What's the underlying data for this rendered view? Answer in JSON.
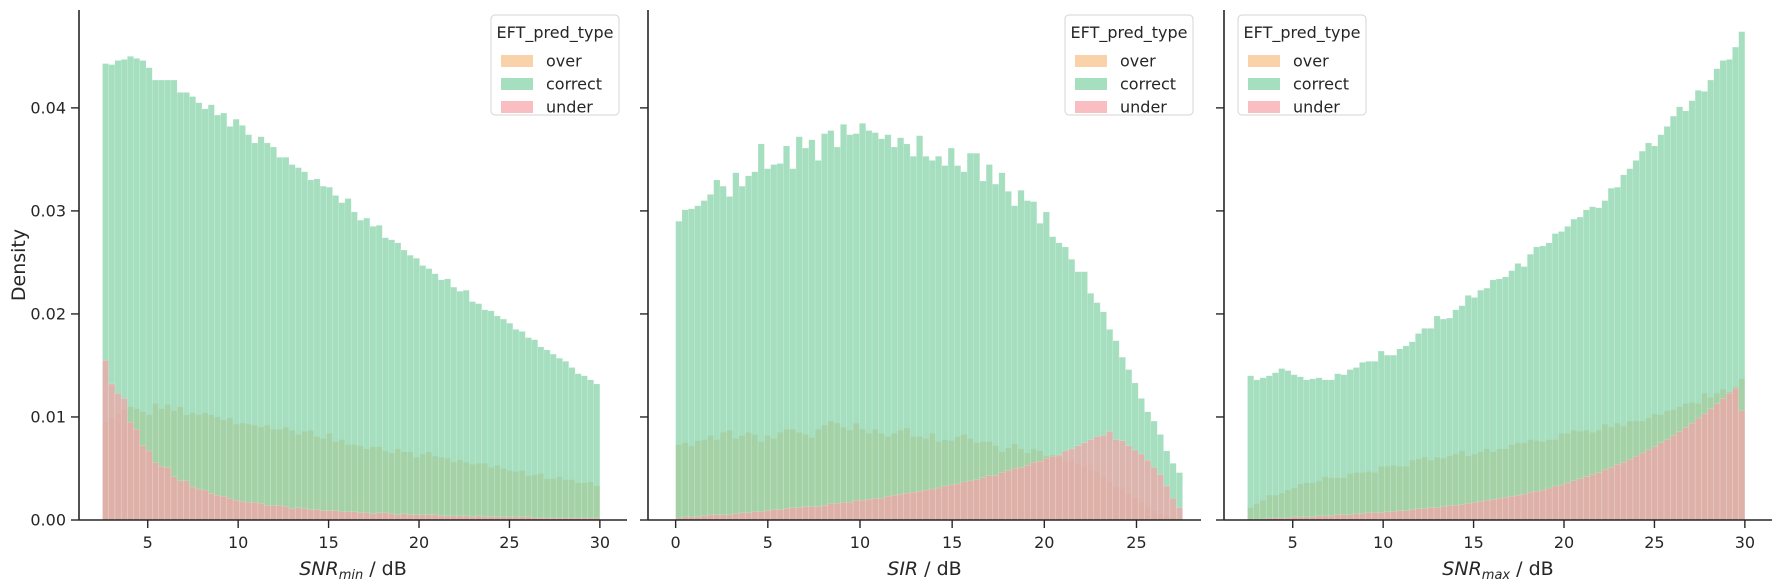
{
  "chart_data": [
    {
      "type": "bar",
      "title": "",
      "xlabel_main": "SNR",
      "xlabel_sub": "min",
      "xlabel_rest": " / dB",
      "ylabel": "Density",
      "xlim": [
        1.2,
        31.5
      ],
      "ylim": [
        0,
        0.0495
      ],
      "xticks": [
        5,
        10,
        15,
        20,
        25,
        30
      ],
      "yticks": [
        0.0,
        0.01,
        0.02,
        0.03,
        0.04
      ],
      "ytick_labels": [
        "0.00",
        "0.01",
        "0.02",
        "0.03",
        "0.04"
      ],
      "show_yticklabels": true,
      "legend": {
        "title": "EFT_pred_type",
        "entries": [
          "over",
          "correct",
          "under"
        ],
        "placement": "top-right"
      },
      "bins": {
        "start": 2.5,
        "end": 30,
        "count": 80
      },
      "series": [
        {
          "name": "over",
          "color": "#f8bf86",
          "values": [
            0.0095,
            0.0099,
            0.0103,
            0.0107,
            0.011,
            0.0108,
            0.0105,
            0.0102,
            0.0113,
            0.0108,
            0.0112,
            0.0106,
            0.011,
            0.0102,
            0.0104,
            0.0102,
            0.0104,
            0.0102,
            0.01,
            0.0097,
            0.0099,
            0.0093,
            0.0094,
            0.0093,
            0.0092,
            0.009,
            0.0092,
            0.0088,
            0.0088,
            0.009,
            0.0087,
            0.0083,
            0.0086,
            0.0087,
            0.0081,
            0.0079,
            0.0084,
            0.0076,
            0.0078,
            0.0073,
            0.0073,
            0.0072,
            0.0069,
            0.0071,
            0.0071,
            0.0067,
            0.0065,
            0.0069,
            0.0066,
            0.0066,
            0.0061,
            0.0064,
            0.0066,
            0.0062,
            0.0061,
            0.006,
            0.0056,
            0.0058,
            0.0056,
            0.0054,
            0.0055,
            0.0055,
            0.0051,
            0.0053,
            0.005,
            0.0048,
            0.0047,
            0.0048,
            0.0043,
            0.0044,
            0.0045,
            0.004,
            0.004,
            0.0042,
            0.0039,
            0.0039,
            0.0036,
            0.0036,
            0.0037,
            0.0033
          ]
        },
        {
          "name": "correct",
          "color": "#7fd1a4",
          "values": [
            0.0443,
            0.0442,
            0.0446,
            0.0447,
            0.045,
            0.0448,
            0.0446,
            0.0439,
            0.0427,
            0.0427,
            0.0427,
            0.0427,
            0.0415,
            0.0415,
            0.0411,
            0.0405,
            0.0399,
            0.0403,
            0.0393,
            0.0395,
            0.0382,
            0.0389,
            0.0383,
            0.0374,
            0.0366,
            0.0372,
            0.0366,
            0.0362,
            0.0352,
            0.0352,
            0.0345,
            0.0342,
            0.0338,
            0.033,
            0.0331,
            0.0324,
            0.0323,
            0.0315,
            0.0308,
            0.0312,
            0.0299,
            0.0291,
            0.0293,
            0.0285,
            0.0286,
            0.0274,
            0.0272,
            0.0269,
            0.0262,
            0.0257,
            0.0254,
            0.0247,
            0.0244,
            0.0239,
            0.0233,
            0.0234,
            0.0226,
            0.0222,
            0.0223,
            0.0212,
            0.021,
            0.0204,
            0.0203,
            0.0198,
            0.0195,
            0.0191,
            0.0185,
            0.0183,
            0.0177,
            0.0175,
            0.0168,
            0.0165,
            0.0161,
            0.0157,
            0.0154,
            0.0148,
            0.0142,
            0.014,
            0.0136,
            0.0132
          ]
        },
        {
          "name": "under",
          "color": "#f5a3a8",
          "values": [
            0.0155,
            0.0132,
            0.0123,
            0.0118,
            0.0095,
            0.0088,
            0.0072,
            0.0067,
            0.0056,
            0.0052,
            0.0051,
            0.0042,
            0.0038,
            0.0038,
            0.0032,
            0.003,
            0.0029,
            0.0026,
            0.0024,
            0.0023,
            0.0021,
            0.0019,
            0.0018,
            0.0017,
            0.0017,
            0.0016,
            0.0014,
            0.0014,
            0.0014,
            0.0013,
            0.0011,
            0.0012,
            0.0011,
            0.001,
            0.001,
            0.0009,
            0.0009,
            0.0009,
            0.0008,
            0.0008,
            0.0008,
            0.0007,
            0.0007,
            0.0006,
            0.0007,
            0.0007,
            0.0006,
            0.0005,
            0.0006,
            0.0005,
            0.0005,
            0.0005,
            0.0005,
            0.0005,
            0.0004,
            0.0004,
            0.0004,
            0.0004,
            0.0004,
            0.0003,
            0.0004,
            0.0003,
            0.0003,
            0.0003,
            0.0003,
            0.0003,
            0.0003,
            0.0003,
            0.0003,
            0.0002,
            0.0002,
            0.0002,
            0.0002,
            0.0002,
            0.0002,
            0.0002,
            0.0002,
            0.0002,
            0.0002,
            0.0002
          ]
        }
      ]
    },
    {
      "type": "bar",
      "title": "",
      "xlabel_main": "SIR",
      "xlabel_sub": "",
      "xlabel_rest": " / dB",
      "ylabel": "",
      "xlim": [
        -1.5,
        28.5
      ],
      "ylim": [
        0,
        0.0495
      ],
      "xticks": [
        0,
        5,
        10,
        15,
        20,
        25
      ],
      "yticks": [
        0.0,
        0.01,
        0.02,
        0.03,
        0.04
      ],
      "ytick_labels": [
        "",
        "",
        "",
        "",
        ""
      ],
      "show_yticklabels": false,
      "legend": {
        "title": "EFT_pred_type",
        "entries": [
          "over",
          "correct",
          "under"
        ],
        "placement": "top-right"
      },
      "bins": {
        "start": 0,
        "end": 27.5,
        "count": 80
      },
      "series": [
        {
          "name": "over",
          "color": "#f8bf86",
          "values": [
            0.0073,
            0.0075,
            0.0072,
            0.0077,
            0.0078,
            0.0082,
            0.0078,
            0.0085,
            0.0087,
            0.0079,
            0.0082,
            0.0085,
            0.0083,
            0.0076,
            0.0082,
            0.0079,
            0.0085,
            0.0088,
            0.0088,
            0.0085,
            0.0083,
            0.008,
            0.0088,
            0.0092,
            0.0096,
            0.0094,
            0.009,
            0.0087,
            0.0094,
            0.0088,
            0.0084,
            0.0088,
            0.0084,
            0.0081,
            0.0084,
            0.0087,
            0.0089,
            0.0081,
            0.0081,
            0.0079,
            0.0084,
            0.0076,
            0.0078,
            0.0077,
            0.0081,
            0.0083,
            0.0079,
            0.0075,
            0.0076,
            0.0076,
            0.0072,
            0.0066,
            0.007,
            0.0074,
            0.0069,
            0.0065,
            0.0069,
            0.0067,
            0.0062,
            0.0063,
            0.0061,
            0.0057,
            0.0058,
            0.0054,
            0.0052,
            0.0048,
            0.0047,
            0.0042,
            0.0037,
            0.0032,
            0.0031,
            0.0025,
            0.0021,
            0.0017,
            0.0012,
            0.0009,
            0.0006,
            0.0004,
            0.0002,
            0.0001
          ]
        },
        {
          "name": "correct",
          "color": "#7fd1a4",
          "values": [
            0.029,
            0.0301,
            0.0302,
            0.0305,
            0.031,
            0.0316,
            0.033,
            0.0324,
            0.0314,
            0.0337,
            0.0324,
            0.0334,
            0.0338,
            0.0365,
            0.0341,
            0.0345,
            0.0346,
            0.0363,
            0.0341,
            0.0372,
            0.0361,
            0.0369,
            0.0349,
            0.0375,
            0.0378,
            0.0362,
            0.0384,
            0.0374,
            0.0375,
            0.0385,
            0.0378,
            0.0376,
            0.037,
            0.0374,
            0.0362,
            0.0371,
            0.0365,
            0.0353,
            0.0373,
            0.0353,
            0.0349,
            0.0353,
            0.0344,
            0.0361,
            0.0344,
            0.0338,
            0.0356,
            0.0356,
            0.0329,
            0.0345,
            0.0326,
            0.0337,
            0.0319,
            0.0305,
            0.032,
            0.031,
            0.0309,
            0.0288,
            0.0299,
            0.0275,
            0.0269,
            0.0265,
            0.0253,
            0.0241,
            0.0241,
            0.022,
            0.0211,
            0.0202,
            0.0185,
            0.0174,
            0.0158,
            0.0146,
            0.0133,
            0.0118,
            0.0105,
            0.0096,
            0.0083,
            0.0067,
            0.0055,
            0.0046
          ]
        },
        {
          "name": "under",
          "color": "#f5a3a8",
          "values": [
            0.0002,
            0.0003,
            0.0003,
            0.0003,
            0.0004,
            0.0005,
            0.0005,
            0.0005,
            0.0005,
            0.0006,
            0.0007,
            0.0007,
            0.0008,
            0.0008,
            0.0009,
            0.001,
            0.001,
            0.0011,
            0.0012,
            0.0012,
            0.0013,
            0.0013,
            0.0013,
            0.0014,
            0.0016,
            0.0016,
            0.0017,
            0.0017,
            0.0019,
            0.0019,
            0.002,
            0.0021,
            0.0021,
            0.0023,
            0.0024,
            0.0025,
            0.0026,
            0.0027,
            0.0028,
            0.0029,
            0.003,
            0.0031,
            0.0033,
            0.0034,
            0.0035,
            0.0037,
            0.0038,
            0.0039,
            0.0041,
            0.0043,
            0.0043,
            0.0046,
            0.0048,
            0.005,
            0.0051,
            0.0053,
            0.0056,
            0.0057,
            0.006,
            0.0062,
            0.0063,
            0.0067,
            0.0069,
            0.0072,
            0.0075,
            0.0078,
            0.0081,
            0.0082,
            0.0086,
            0.0078,
            0.0077,
            0.0072,
            0.0068,
            0.0064,
            0.0058,
            0.0051,
            0.0044,
            0.0033,
            0.0021,
            0.0012
          ]
        }
      ]
    },
    {
      "type": "bar",
      "title": "",
      "xlabel_main": "SNR",
      "xlabel_sub": "max",
      "xlabel_rest": " / dB",
      "ylabel": "",
      "xlim": [
        1.2,
        31.5
      ],
      "ylim": [
        0,
        0.0495
      ],
      "xticks": [
        5,
        10,
        15,
        20,
        25,
        30
      ],
      "yticks": [
        0.0,
        0.01,
        0.02,
        0.03,
        0.04
      ],
      "ytick_labels": [
        "",
        "",
        "",
        "",
        ""
      ],
      "show_yticklabels": false,
      "legend": {
        "title": "EFT_pred_type",
        "entries": [
          "over",
          "correct",
          "under"
        ],
        "placement": "top-left"
      },
      "bins": {
        "start": 2.5,
        "end": 30,
        "count": 80
      },
      "series": [
        {
          "name": "over",
          "color": "#f8bf86",
          "values": [
            0.0012,
            0.0016,
            0.0019,
            0.0024,
            0.0024,
            0.0026,
            0.0029,
            0.0031,
            0.0035,
            0.0036,
            0.0036,
            0.0038,
            0.0042,
            0.0041,
            0.0041,
            0.0041,
            0.0045,
            0.0046,
            0.0046,
            0.0047,
            0.0046,
            0.0052,
            0.0052,
            0.0053,
            0.0052,
            0.0052,
            0.0058,
            0.0059,
            0.0061,
            0.0058,
            0.0061,
            0.006,
            0.0062,
            0.0064,
            0.0067,
            0.0062,
            0.0064,
            0.0066,
            0.0069,
            0.0066,
            0.0069,
            0.0069,
            0.0073,
            0.0075,
            0.0075,
            0.0078,
            0.0077,
            0.0076,
            0.0078,
            0.0078,
            0.0084,
            0.0084,
            0.0087,
            0.0086,
            0.0087,
            0.0085,
            0.0087,
            0.0093,
            0.009,
            0.0094,
            0.0091,
            0.0096,
            0.0096,
            0.0096,
            0.0099,
            0.0103,
            0.0102,
            0.0106,
            0.0107,
            0.011,
            0.0113,
            0.0114,
            0.0113,
            0.0123,
            0.0119,
            0.0123,
            0.0127,
            0.0124,
            0.0129,
            0.0137
          ]
        },
        {
          "name": "correct",
          "color": "#7fd1a4",
          "values": [
            0.014,
            0.0136,
            0.0138,
            0.014,
            0.0143,
            0.0147,
            0.0145,
            0.0141,
            0.0139,
            0.0136,
            0.0137,
            0.0138,
            0.0136,
            0.0136,
            0.0142,
            0.0141,
            0.0146,
            0.0148,
            0.0153,
            0.0154,
            0.0154,
            0.0164,
            0.016,
            0.016,
            0.0166,
            0.0169,
            0.0173,
            0.0181,
            0.0186,
            0.0186,
            0.0198,
            0.0195,
            0.0196,
            0.0204,
            0.0208,
            0.0218,
            0.0216,
            0.0223,
            0.0225,
            0.0233,
            0.0234,
            0.0236,
            0.0242,
            0.0249,
            0.0246,
            0.0258,
            0.0265,
            0.0266,
            0.0269,
            0.0278,
            0.028,
            0.0285,
            0.0292,
            0.0294,
            0.0301,
            0.0304,
            0.0303,
            0.031,
            0.0322,
            0.0323,
            0.0335,
            0.0341,
            0.0349,
            0.0358,
            0.0366,
            0.0363,
            0.0374,
            0.0382,
            0.0392,
            0.0401,
            0.0397,
            0.0407,
            0.0417,
            0.0416,
            0.0427,
            0.0438,
            0.0446,
            0.0447,
            0.0459,
            0.0474
          ]
        },
        {
          "name": "under",
          "color": "#f5a3a8",
          "values": [
            0.0001,
            0.0001,
            0.0001,
            0.0002,
            0.0002,
            0.0002,
            0.0002,
            0.0003,
            0.0003,
            0.0003,
            0.0003,
            0.0004,
            0.0004,
            0.0004,
            0.0005,
            0.0005,
            0.0005,
            0.0006,
            0.0006,
            0.0007,
            0.0007,
            0.0007,
            0.0008,
            0.0008,
            0.0009,
            0.0009,
            0.001,
            0.0011,
            0.0011,
            0.0012,
            0.0012,
            0.0013,
            0.0014,
            0.0014,
            0.0015,
            0.0016,
            0.0017,
            0.0018,
            0.0019,
            0.002,
            0.0021,
            0.0022,
            0.0023,
            0.0024,
            0.0025,
            0.0027,
            0.0028,
            0.0029,
            0.0031,
            0.0033,
            0.0034,
            0.0036,
            0.0038,
            0.004,
            0.0042,
            0.0044,
            0.0046,
            0.0049,
            0.0051,
            0.0054,
            0.0056,
            0.0059,
            0.0062,
            0.0065,
            0.0068,
            0.0071,
            0.0075,
            0.0078,
            0.0082,
            0.0086,
            0.009,
            0.0094,
            0.0099,
            0.0103,
            0.0108,
            0.0113,
            0.0118,
            0.0123,
            0.0128,
            0.0106
          ]
        }
      ]
    }
  ]
}
